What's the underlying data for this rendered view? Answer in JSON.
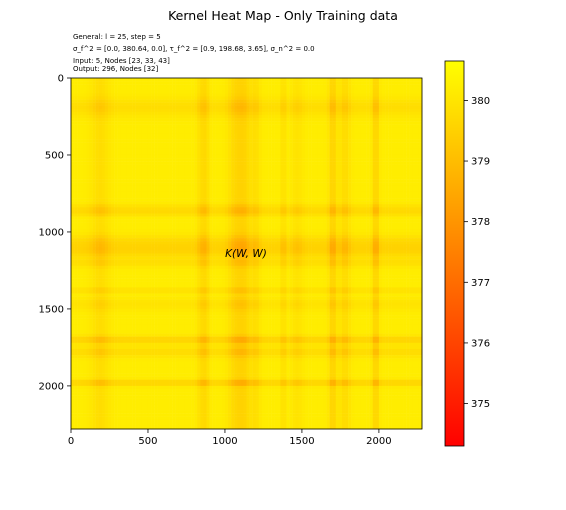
{
  "chart_data": {
    "type": "heatmap",
    "title": "Kernel Heat Map - Only Training data",
    "info_lines": [
      "General: l = 25, step = 5",
      "σ_f^2 = [0.0, 380.64, 0.0], τ_f^2 = [0.9, 198.68, 3.65], σ_n^2 = 0.0",
      "Input: 5, Nodes [23, 33, 43]",
      "Output: 296, Nodes [32]"
    ],
    "annotation": "K(W, W)",
    "xlim": [
      0,
      2280
    ],
    "ylim": [
      2280,
      0
    ],
    "x_ticks": [
      0,
      500,
      1000,
      1500,
      2000
    ],
    "y_ticks": [
      0,
      500,
      1000,
      1500,
      2000
    ],
    "colorbar": {
      "range": [
        374.3,
        380.65
      ],
      "ticks": [
        375,
        376,
        377,
        378,
        379,
        380
      ],
      "colors": [
        "#ff0000",
        "#ff8000",
        "#ffff00"
      ]
    },
    "baseline_value": 380.2,
    "dip_bands": [
      {
        "center": 190,
        "width": 60,
        "depth": 0.55
      },
      {
        "center": 850,
        "width": 30,
        "depth": 0.6
      },
      {
        "center": 880,
        "width": 20,
        "depth": 0.4
      },
      {
        "center": 1070,
        "width": 50,
        "depth": 0.75
      },
      {
        "center": 1130,
        "width": 40,
        "depth": 0.7
      },
      {
        "center": 1200,
        "width": 30,
        "depth": 0.5
      },
      {
        "center": 1380,
        "width": 12,
        "depth": 0.7
      },
      {
        "center": 1470,
        "width": 40,
        "depth": 0.35
      },
      {
        "center": 1700,
        "width": 25,
        "depth": 0.95
      },
      {
        "center": 1780,
        "width": 35,
        "depth": 0.6
      },
      {
        "center": 1980,
        "width": 20,
        "depth": 0.95
      }
    ]
  }
}
